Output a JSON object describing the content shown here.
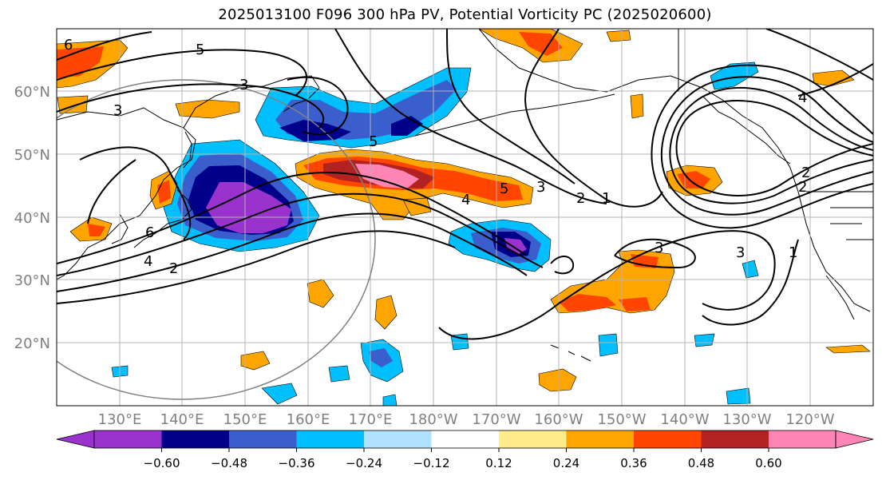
{
  "title": "2025013100 F096 300 hPa PV, Potential Vorticity PC (2025020600)",
  "map": {
    "lat_labels": [
      "60°N",
      "50°N",
      "40°N",
      "30°N",
      "20°N"
    ],
    "lon_labels": [
      "130°E",
      "140°E",
      "150°E",
      "160°E",
      "170°E",
      "180°W",
      "170°W",
      "160°W",
      "150°W",
      "140°W",
      "130°W",
      "120°W"
    ],
    "contour_labels": [
      "6",
      "5",
      "3",
      "3",
      "6",
      "4",
      "2",
      "5",
      "4",
      "5",
      "3",
      "2",
      "1",
      "3",
      "3",
      "1",
      "2",
      "4",
      "2"
    ],
    "fill_colors": {
      "neg_strong": "#9a32cd",
      "neg_navy": "#00008b",
      "neg_mid": "#3a5fcd",
      "neg_light": "#00bfff",
      "pos_light": "#ffa500",
      "pos_mid": "#ff4500",
      "pos_strong": "#b22222",
      "pos_max": "#ff85b4"
    }
  },
  "colorbar": {
    "colors": [
      "#9a32cd",
      "#00008b",
      "#3a5fcd",
      "#00bfff",
      "#b0e2ff",
      "#ffffff",
      "#ffffff",
      "#ffec8b",
      "#ffa500",
      "#ff4500",
      "#b22222",
      "#ff85b4"
    ],
    "tick_labels": [
      "−0.60",
      "−0.48",
      "−0.36",
      "−0.24",
      "−0.12",
      "0.12",
      "0.24",
      "0.36",
      "0.48",
      "0.60"
    ]
  }
}
